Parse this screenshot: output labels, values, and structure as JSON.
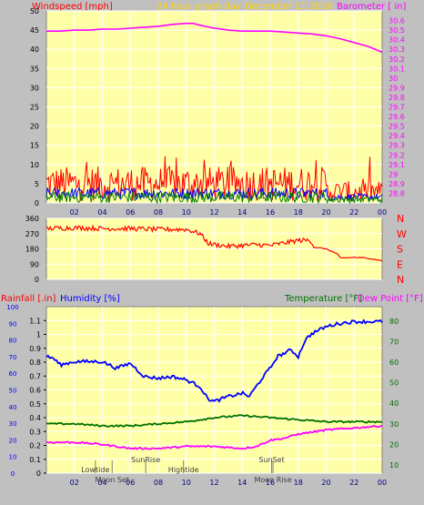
{
  "header": {
    "windspeed_label": "Windspeed [mph]",
    "graph_title": "24 hour graph day",
    "graph_date": "December 11 2016",
    "barometer_label": "Barometer [ in]"
  },
  "colors": {
    "background": "#c0c0c0",
    "plot_bg": "#ffffa8",
    "grid": "#ffffff",
    "wind_red": "#ff0000",
    "wind_blue": "#0000ff",
    "wind_green": "#008000",
    "barometer": "#ff00ff",
    "title": "#ffd400",
    "humidity": "#0000ff",
    "temperature": "#007000",
    "dewpoint": "#ff00ff",
    "rainfall": "#ff0000"
  },
  "x_ticks": [
    "02",
    "04",
    "06",
    "08",
    "10",
    "12",
    "14",
    "16",
    "18",
    "20",
    "22",
    "00"
  ],
  "chart_data": [
    {
      "type": "line",
      "id": "wind_baro",
      "x_unit": "hour",
      "xlim": [
        0,
        24
      ],
      "left_axis": {
        "label": "Windspeed [mph]",
        "ylim": [
          0,
          50
        ],
        "ticks": [
          0,
          5,
          10,
          15,
          20,
          25,
          30,
          35,
          40,
          45,
          50
        ]
      },
      "right_axis": {
        "label": "Barometer [ in]",
        "ylim": [
          28.7,
          30.7
        ],
        "ticks": [
          "28.8",
          "28.9",
          "29",
          "29.1",
          "29.2",
          "29.3",
          "29.4",
          "29.5",
          "29.6",
          "29.7",
          "29.8",
          "29.9",
          "30",
          "30.1",
          "30.2",
          "30.3",
          "30.4",
          "30.5",
          "30.6"
        ]
      },
      "series": [
        {
          "axis": "right",
          "color": "#ff00ff",
          "x": [
            0,
            1,
            2,
            3,
            4,
            5,
            6,
            7,
            8,
            9,
            10,
            10.5,
            11,
            12,
            13,
            14,
            15,
            16,
            17,
            18,
            19,
            20,
            21,
            22,
            23,
            24
          ],
          "values": [
            30.49,
            30.49,
            30.5,
            30.5,
            30.51,
            30.51,
            30.52,
            30.53,
            30.54,
            30.56,
            30.57,
            30.57,
            30.55,
            30.52,
            30.5,
            30.49,
            30.49,
            30.49,
            30.48,
            30.47,
            30.46,
            30.44,
            30.41,
            30.37,
            30.33,
            30.27
          ]
        },
        {
          "axis": "left",
          "kind": "gust",
          "color": "#ff0000",
          "base": 5,
          "variation": 4.5,
          "spikes": 7
        },
        {
          "axis": "left",
          "kind": "average",
          "color": "#0000ff",
          "base": 2.5,
          "variation": 1.5
        },
        {
          "axis": "left",
          "kind": "speed",
          "color": "#008000",
          "base": 1.5,
          "variation": 1.5
        }
      ]
    },
    {
      "type": "line",
      "id": "direction",
      "xlim": [
        0,
        24
      ],
      "left_axis": {
        "ylim": [
          0,
          360
        ],
        "ticks": [
          0,
          90,
          180,
          270,
          360
        ]
      },
      "right_axis_labels": [
        "N",
        "W",
        "S",
        "E",
        "N"
      ],
      "series": [
        {
          "color": "#ff0000",
          "x": [
            0,
            2,
            4,
            6,
            8,
            10,
            11,
            11.4,
            11.6,
            13,
            15,
            16,
            18,
            18.9,
            19.1,
            20,
            20.8,
            21,
            22,
            23,
            24
          ],
          "values": [
            300,
            305,
            300,
            300,
            295,
            295,
            270,
            230,
            210,
            195,
            205,
            200,
            230,
            230,
            190,
            180,
            150,
            125,
            130,
            125,
            110
          ]
        }
      ]
    },
    {
      "type": "line",
      "id": "temp_hum",
      "xlim": [
        0,
        24
      ],
      "left_axis_rain": {
        "label": "Rainfall [.in]",
        "ylim": [
          0,
          1.2
        ],
        "ticks": [
          "0",
          "0.1",
          "0.2",
          "0.3",
          "0.4",
          "0.5",
          "0.6",
          "0.7",
          "0.8",
          "0.9",
          "1",
          "1.1"
        ]
      },
      "left_axis_humidity": {
        "label": "Humidity [%]",
        "ylim": [
          0,
          100
        ],
        "ticks": [
          0,
          10,
          20,
          30,
          40,
          50,
          60,
          70,
          80,
          90,
          100
        ]
      },
      "right_axis": {
        "label": "Temperature [°F]",
        "label2": "Dew Point [°F]",
        "ylim": [
          6,
          87
        ],
        "ticks": [
          10,
          20,
          30,
          40,
          50,
          60,
          70,
          80
        ]
      },
      "series": [
        {
          "name": "Humidity [%]",
          "axis": "humidity",
          "color": "#0000ff",
          "x": [
            0,
            0.5,
            1,
            2,
            3,
            4,
            5,
            6,
            7,
            8,
            9,
            10,
            11,
            11.5,
            12,
            13,
            14,
            14.5,
            15,
            15.5,
            16,
            16.5,
            17,
            17.5,
            18,
            18.5,
            19,
            20,
            21,
            22,
            23,
            24
          ],
          "values": [
            70,
            69,
            65,
            67,
            67,
            67,
            63,
            66,
            58,
            57,
            58,
            56,
            52,
            45,
            43,
            46,
            48,
            46,
            52,
            58,
            63,
            70,
            72,
            74,
            70,
            80,
            84,
            88,
            90,
            91,
            91,
            91
          ]
        },
        {
          "name": "Temperature [°F]",
          "axis": "right",
          "color": "#007000",
          "x": [
            0,
            2,
            4,
            6,
            8,
            10,
            12,
            14,
            16,
            18,
            20,
            22,
            24
          ],
          "values": [
            30,
            30,
            29,
            29,
            30,
            31,
            33,
            34,
            33,
            32,
            31,
            31,
            31
          ]
        },
        {
          "name": "Dew Point [°F]",
          "axis": "right",
          "color": "#ff00ff",
          "x": [
            0,
            1,
            2,
            4,
            6,
            8,
            10,
            12,
            14,
            15,
            16,
            17,
            18,
            20,
            22,
            24
          ],
          "values": [
            21,
            21,
            21,
            20,
            18,
            18,
            19,
            19,
            18,
            19,
            22,
            23,
            25,
            27,
            28,
            29
          ]
        }
      ],
      "annotations": [
        {
          "text": "Lowtide",
          "hour": 3.5,
          "row": 1,
          "color": "#404040"
        },
        {
          "text": "Moon Set",
          "hour": 4.7,
          "row": 2,
          "color": "#404040"
        },
        {
          "text": "SunRise",
          "hour": 7.1,
          "row": 0,
          "color": "#404040"
        },
        {
          "text": "Hightide",
          "hour": 9.8,
          "row": 1,
          "color": "#404040"
        },
        {
          "text": "SunSet",
          "hour": 16.1,
          "row": 0,
          "color": "#404040"
        },
        {
          "text": "Moon Rise",
          "hour": 16.2,
          "row": 2,
          "color": "#404040"
        }
      ]
    }
  ],
  "panel3_labels": {
    "rainfall": "Rainfall [.in]",
    "humidity": "Humidity [%]",
    "temperature": "Temperature [°F]",
    "dewpoint": "Dew Point [°F]"
  }
}
